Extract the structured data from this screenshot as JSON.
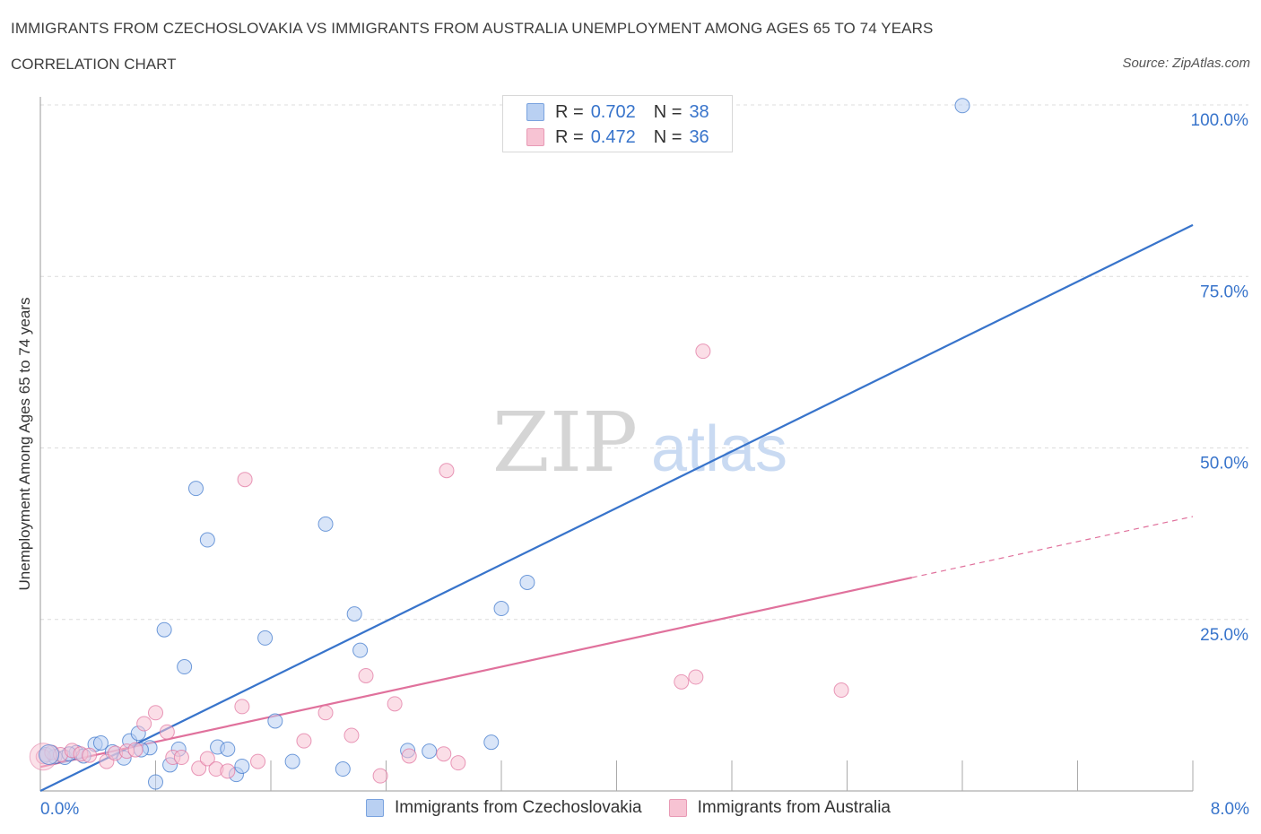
{
  "title": "IMMIGRANTS FROM CZECHOSLOVAKIA VS IMMIGRANTS FROM AUSTRALIA UNEMPLOYMENT AMONG AGES 65 TO 74 YEARS",
  "subtitle": "CORRELATION CHART",
  "source": "Source: ZipAtlas.com",
  "watermark": {
    "zip": "ZIP",
    "atlas": "atlas"
  },
  "colors": {
    "blue": "#3874cb",
    "blue_fill": "#b9d0f2",
    "pink": "#e0719c",
    "pink_fill": "#f7c3d3",
    "grid": "#dcdcdc"
  },
  "legend": {
    "r_label": "R =",
    "n_label": "N =",
    "rows": [
      {
        "r": "0.702",
        "n": "38"
      },
      {
        "r": "0.472",
        "n": "36"
      }
    ]
  },
  "chart_data": {
    "type": "scatter",
    "title": "IMMIGRANTS FROM CZECHOSLOVAKIA VS IMMIGRANTS FROM AUSTRALIA UNEMPLOYMENT AMONG AGES 65 TO 74 YEARS",
    "xlabel": "",
    "ylabel": "Unemployment Among Ages 65 to 74 years",
    "xlim": [
      0,
      8
    ],
    "ylim": [
      0,
      100
    ],
    "x_tick_labels": [
      "0.0%",
      "8.0%"
    ],
    "y_ticks": [
      25,
      50,
      75,
      100
    ],
    "y_tick_labels": [
      "25.0%",
      "50.0%",
      "75.0%",
      "100.0%"
    ],
    "grid": true,
    "series": [
      {
        "name": "Immigrants from Czechoslovakia",
        "color": "#3874cb",
        "fill": "#b9d0f2",
        "r": 0.702,
        "n": 38,
        "trend": {
          "x": [
            0,
            8
          ],
          "y": [
            0,
            82.5
          ],
          "dashed_from": null
        },
        "points": [
          [
            0.04,
            5.3
          ],
          [
            0.1,
            5.0
          ],
          [
            0.17,
            4.9
          ],
          [
            0.25,
            5.6
          ],
          [
            0.3,
            5.1
          ],
          [
            0.38,
            6.8
          ],
          [
            0.42,
            7.0
          ],
          [
            0.5,
            5.7
          ],
          [
            0.58,
            4.8
          ],
          [
            0.62,
            7.3
          ],
          [
            0.68,
            8.4
          ],
          [
            0.76,
            6.3
          ],
          [
            0.8,
            1.3
          ],
          [
            0.86,
            23.5
          ],
          [
            0.9,
            3.8
          ],
          [
            0.96,
            6.1
          ],
          [
            1.0,
            18.1
          ],
          [
            1.08,
            44.1
          ],
          [
            1.16,
            36.6
          ],
          [
            1.23,
            6.4
          ],
          [
            1.3,
            6.1
          ],
          [
            1.36,
            2.4
          ],
          [
            1.4,
            3.6
          ],
          [
            1.56,
            22.3
          ],
          [
            1.63,
            10.2
          ],
          [
            1.75,
            4.3
          ],
          [
            1.98,
            38.9
          ],
          [
            2.1,
            3.2
          ],
          [
            2.18,
            25.8
          ],
          [
            2.22,
            20.5
          ],
          [
            2.55,
            5.9
          ],
          [
            2.7,
            5.8
          ],
          [
            3.13,
            7.1
          ],
          [
            3.2,
            26.6
          ],
          [
            3.38,
            30.4
          ],
          [
            6.4,
            99.9
          ],
          [
            0.2,
            5.4
          ],
          [
            0.7,
            6.0
          ]
        ]
      },
      {
        "name": "Immigrants from Australia",
        "color": "#e0719c",
        "fill": "#f7c3d3",
        "r": 0.472,
        "n": 36,
        "trend": {
          "x": [
            0,
            8
          ],
          "y": [
            3.5,
            40.0
          ],
          "dashed_from": 6.05
        },
        "points": [
          [
            0.02,
            5.0
          ],
          [
            0.08,
            5.6
          ],
          [
            0.14,
            5.3
          ],
          [
            0.22,
            5.9
          ],
          [
            0.28,
            5.4
          ],
          [
            0.34,
            5.2
          ],
          [
            0.46,
            4.3
          ],
          [
            0.52,
            5.5
          ],
          [
            0.6,
            5.8
          ],
          [
            0.66,
            6.0
          ],
          [
            0.72,
            9.8
          ],
          [
            0.8,
            11.4
          ],
          [
            0.88,
            8.6
          ],
          [
            0.92,
            4.9
          ],
          [
            0.98,
            4.9
          ],
          [
            1.1,
            3.3
          ],
          [
            1.16,
            4.7
          ],
          [
            1.22,
            3.2
          ],
          [
            1.3,
            2.9
          ],
          [
            1.4,
            12.3
          ],
          [
            1.42,
            45.4
          ],
          [
            1.51,
            4.3
          ],
          [
            1.83,
            7.3
          ],
          [
            1.98,
            11.4
          ],
          [
            2.16,
            8.1
          ],
          [
            2.26,
            16.8
          ],
          [
            2.36,
            2.2
          ],
          [
            2.46,
            12.7
          ],
          [
            2.56,
            5.1
          ],
          [
            2.8,
            5.4
          ],
          [
            2.9,
            4.1
          ],
          [
            2.82,
            46.7
          ],
          [
            4.45,
            15.9
          ],
          [
            4.55,
            16.6
          ],
          [
            4.6,
            64.1
          ],
          [
            5.56,
            14.7
          ]
        ]
      }
    ]
  }
}
